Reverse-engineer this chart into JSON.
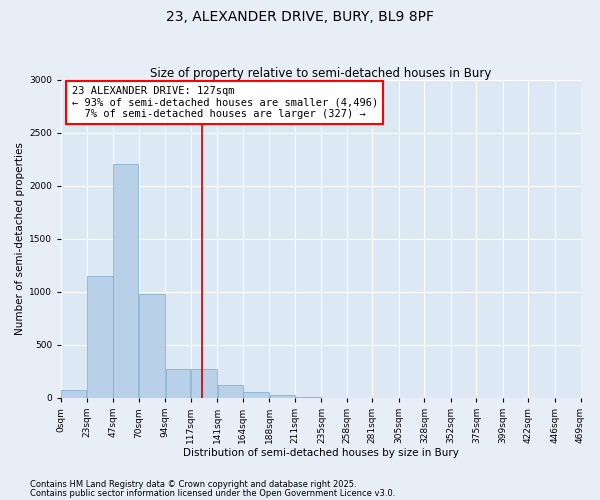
{
  "title": "23, ALEXANDER DRIVE, BURY, BL9 8PF",
  "subtitle": "Size of property relative to semi-detached houses in Bury",
  "xlabel": "Distribution of semi-detached houses by size in Bury",
  "ylabel": "Number of semi-detached properties",
  "footnote1": "Contains HM Land Registry data © Crown copyright and database right 2025.",
  "footnote2": "Contains public sector information licensed under the Open Government Licence v3.0.",
  "property_label": "23 ALEXANDER DRIVE: 127sqm",
  "smaller_label": "← 93% of semi-detached houses are smaller (4,496)",
  "larger_label": "7% of semi-detached houses are larger (327) →",
  "property_size": 127,
  "bin_edges": [
    0,
    23,
    47,
    70,
    94,
    117,
    141,
    164,
    188,
    211,
    235,
    258,
    281,
    305,
    328,
    352,
    375,
    399,
    422,
    446,
    469
  ],
  "bar_values": [
    75,
    1150,
    2200,
    980,
    270,
    270,
    120,
    60,
    30,
    5,
    0,
    0,
    0,
    0,
    0,
    0,
    0,
    0,
    0,
    0
  ],
  "bar_color": "#b8d0e8",
  "bar_edge_color": "#7aaac8",
  "vline_color": "#cc0000",
  "vline_x": 127,
  "ylim": [
    0,
    3000
  ],
  "yticks": [
    0,
    500,
    1000,
    1500,
    2000,
    2500,
    3000
  ],
  "bg_color": "#dce8f4",
  "fig_bg_color": "#e8eef8",
  "grid_color": "#ffffff",
  "title_fontsize": 10,
  "subtitle_fontsize": 8.5,
  "axis_label_fontsize": 7.5,
  "tick_fontsize": 6.5,
  "annotation_fontsize": 7.5,
  "footnote_fontsize": 6.0
}
